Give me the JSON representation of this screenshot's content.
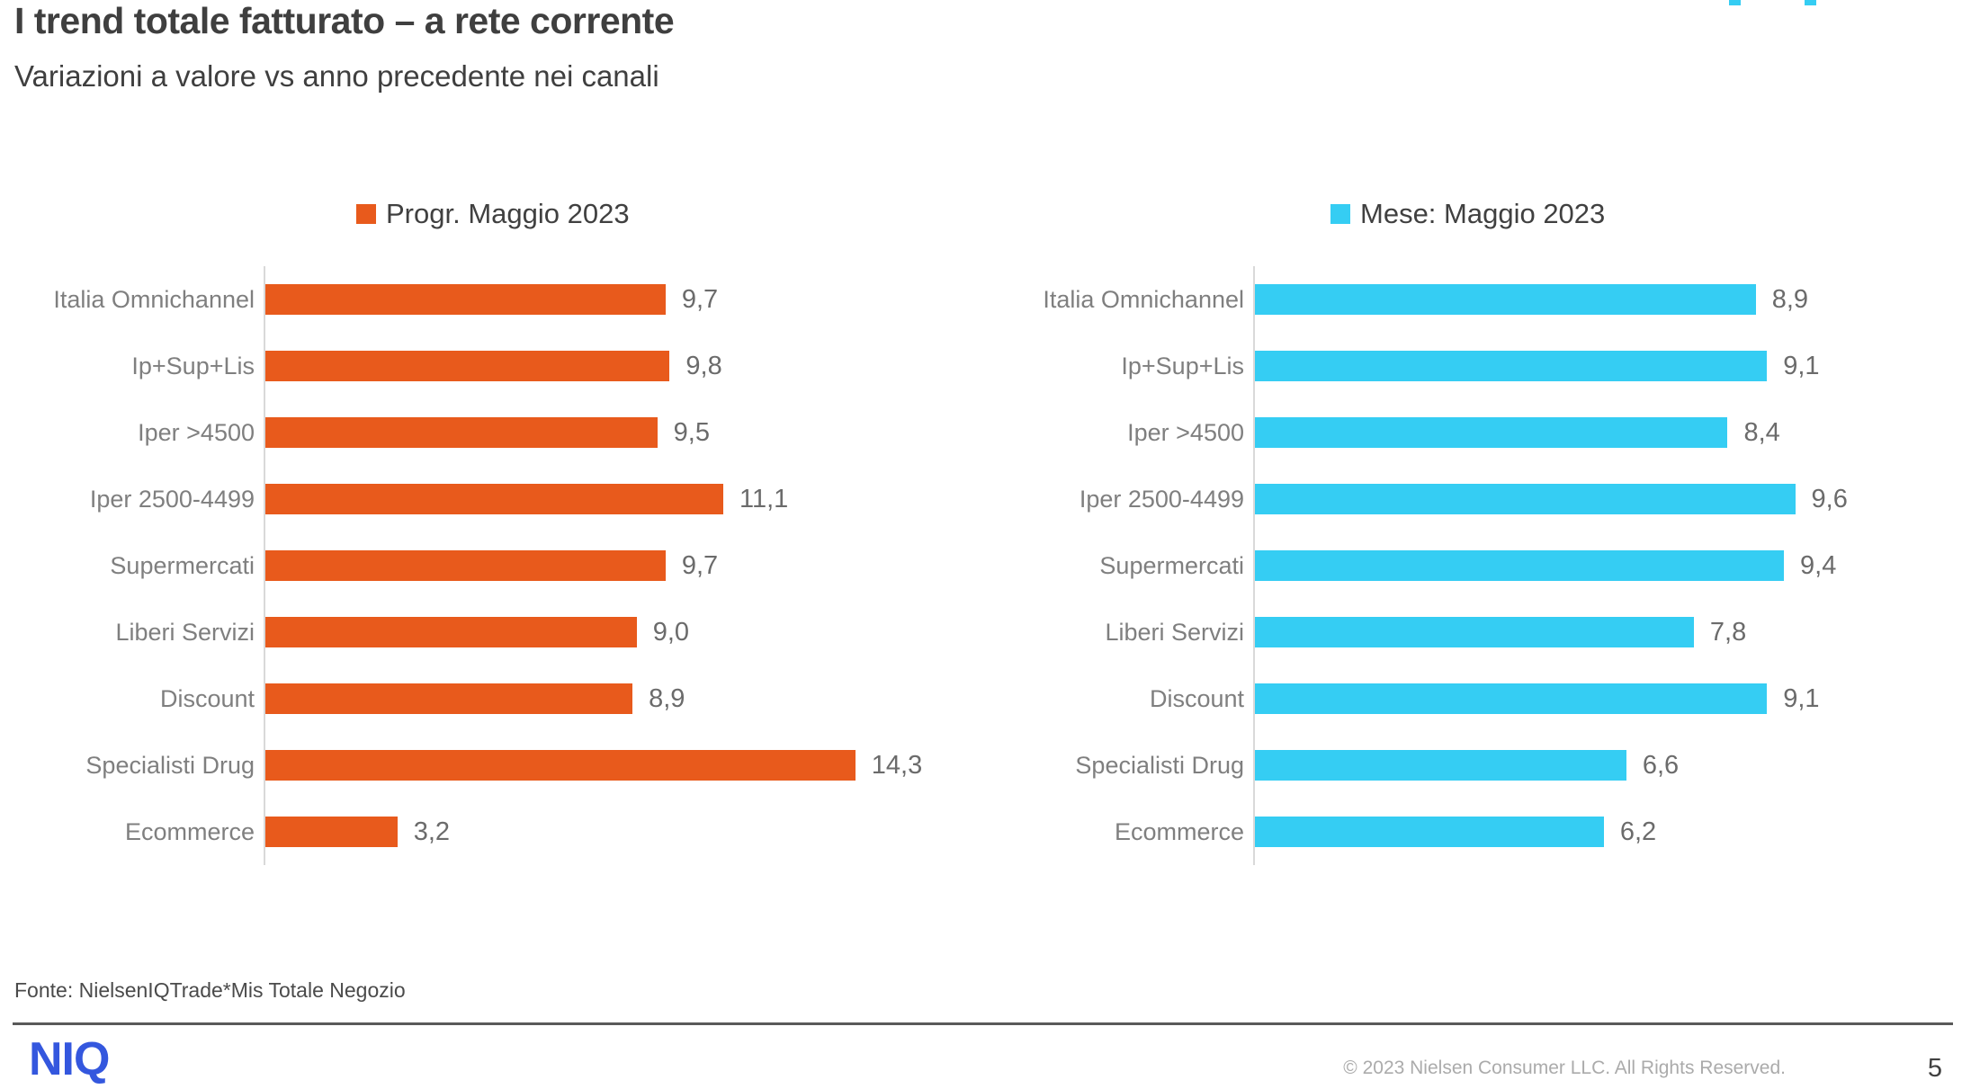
{
  "slide": {
    "title": "I trend totale fatturato – a rete corrente",
    "subtitle": "Variazioni a valore vs anno precedente nei canali",
    "source": "Fonte: NielsenIQTrade*Mis Totale Negozio",
    "footer": {
      "logo_text": "NIQ",
      "copyright": "© 2023 Nielsen Consumer LLC. All Rights Reserved.",
      "page_number": "5"
    }
  },
  "colors": {
    "orange": "#e85a1c",
    "cyan": "#35cdf3",
    "logo_blue": "#3457de",
    "axis_line": "#d9d9d9",
    "category_text": "#7f7f7f",
    "value_text": "#6b6b6b"
  },
  "chart_data": [
    {
      "type": "bar",
      "orientation": "horizontal",
      "legend": "Progr. Maggio 2023",
      "legend_position": "top",
      "color": "#e85a1c",
      "grid": false,
      "axis_max": 16.9,
      "categories": [
        "Italia Omnichannel",
        "Ip+Sup+Lis",
        "Iper >4500",
        "Iper 2500-4499",
        "Supermercati",
        "Liberi Servizi",
        "Discount",
        "Specialisti Drug",
        "Ecommerce"
      ],
      "values": [
        9.7,
        9.8,
        9.5,
        11.1,
        9.7,
        9.0,
        8.9,
        14.3,
        3.2
      ],
      "value_labels": [
        "9,7",
        "9,8",
        "9,5",
        "11,1",
        "9,7",
        "9,0",
        "8,9",
        "14,3",
        "3,2"
      ]
    },
    {
      "type": "bar",
      "orientation": "horizontal",
      "legend": "Mese: Maggio 2023",
      "legend_position": "top",
      "color": "#35cdf3",
      "grid": false,
      "axis_max": 11.35,
      "categories": [
        "Italia Omnichannel",
        "Ip+Sup+Lis",
        "Iper >4500",
        "Iper 2500-4499",
        "Supermercati",
        "Liberi Servizi",
        "Discount",
        "Specialisti Drug",
        "Ecommerce"
      ],
      "values": [
        8.9,
        9.1,
        8.4,
        9.6,
        9.4,
        7.8,
        9.1,
        6.6,
        6.2
      ],
      "value_labels": [
        "8,9",
        "9,1",
        "8,4",
        "9,6",
        "9,4",
        "7,8",
        "9,1",
        "6,6",
        "6,2"
      ]
    }
  ]
}
